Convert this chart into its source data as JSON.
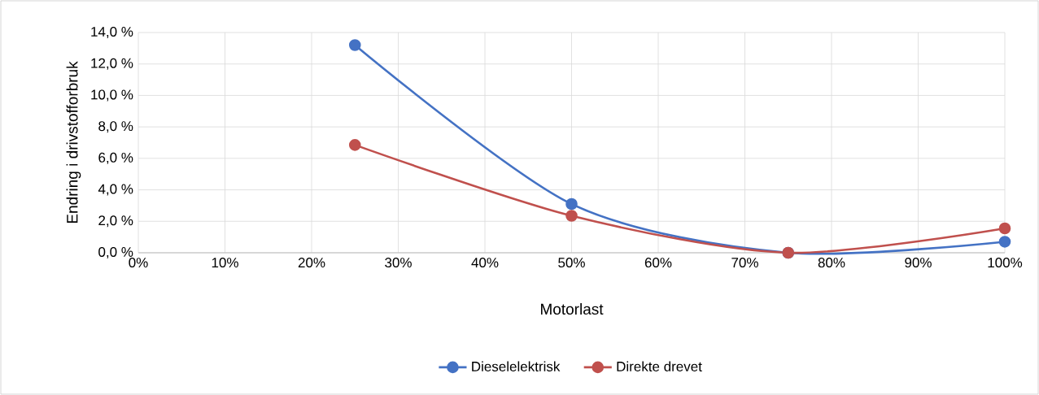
{
  "chart_data": {
    "type": "line",
    "xlabel": "Motorlast",
    "ylabel": "Endring i drivstofforbruk",
    "x": [
      25,
      50,
      75,
      100
    ],
    "series": [
      {
        "name": "Dieselelektrisk",
        "color": "#4472c4",
        "values": [
          13.2,
          3.1,
          0.0,
          0.7
        ]
      },
      {
        "name": "Direkte drevet",
        "color": "#c0504d",
        "values": [
          6.85,
          2.35,
          0.0,
          1.55
        ]
      }
    ],
    "xlim": [
      0,
      100
    ],
    "ylim": [
      0,
      14
    ],
    "xticks": [
      {
        "value": 0,
        "label": "0%"
      },
      {
        "value": 10,
        "label": "10%"
      },
      {
        "value": 20,
        "label": "20%"
      },
      {
        "value": 30,
        "label": "30%"
      },
      {
        "value": 40,
        "label": "40%"
      },
      {
        "value": 50,
        "label": "50%"
      },
      {
        "value": 60,
        "label": "60%"
      },
      {
        "value": 70,
        "label": "70%"
      },
      {
        "value": 80,
        "label": "80%"
      },
      {
        "value": 90,
        "label": "90%"
      },
      {
        "value": 100,
        "label": "100%"
      }
    ],
    "yticks": [
      {
        "value": 0,
        "label": "0,0 %"
      },
      {
        "value": 2,
        "label": "2,0 %"
      },
      {
        "value": 4,
        "label": "4,0 %"
      },
      {
        "value": 6,
        "label": "6,0 %"
      },
      {
        "value": 8,
        "label": "8,0 %"
      },
      {
        "value": 10,
        "label": "10,0 %"
      },
      {
        "value": 12,
        "label": "12,0 %"
      },
      {
        "value": 14,
        "label": "14,0 %"
      }
    ],
    "grid": true,
    "legend": "bottom",
    "marker": "circle",
    "line_style": "solid"
  }
}
